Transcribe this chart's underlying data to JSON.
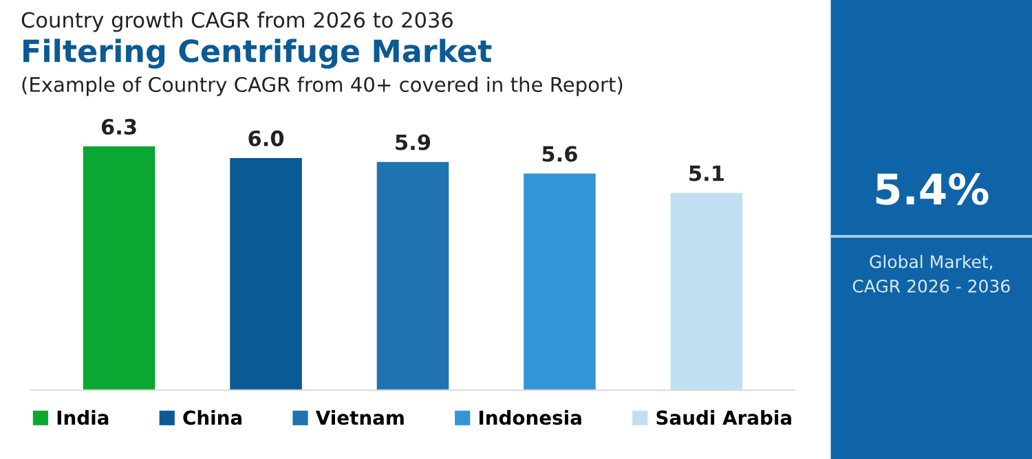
{
  "chart_data": [
    {
      "type": "bar",
      "title": "Filtering Centrifuge Market",
      "subtitle": "Country growth CAGR from 2026 to 2036",
      "annotations": [
        "(Example of Country CAGR from 40+ covered in the Report)"
      ],
      "categories": [
        null,
        null,
        null,
        null,
        null
      ],
      "series": [
        {
          "name": "India",
          "color": "#0aa832",
          "values": [
            6.3,
            null,
            null,
            null,
            null
          ],
          "value_labels": [
            "6.3",
            null,
            null,
            null,
            null
          ]
        },
        {
          "name": "China",
          "color": "#0b5a94",
          "values": [
            null,
            6.0,
            null,
            null,
            null
          ],
          "value_labels": [
            null,
            "6.0",
            null,
            null,
            null
          ]
        },
        {
          "name": "Vietnam",
          "color": "#1f73b0",
          "values": [
            null,
            null,
            5.9,
            null,
            null
          ],
          "value_labels": [
            null,
            null,
            "5.9",
            null,
            null
          ]
        },
        {
          "name": "Indonesia",
          "color": "#3495d6",
          "values": [
            null,
            null,
            null,
            5.6,
            null
          ],
          "value_labels": [
            null,
            null,
            null,
            "5.6",
            null
          ]
        },
        {
          "name": "Saudi Arabia",
          "color": "#c0dff2",
          "values": [
            null,
            null,
            null,
            null,
            5.1
          ],
          "value_labels": [
            null,
            null,
            null,
            null,
            "5.1"
          ]
        }
      ],
      "stacked": true,
      "legend": "bottom"
    },
    {
      "type": "other",
      "title": "5.4%",
      "annotations": [
        "Global Market,\nCAGR 2026 - 2036"
      ]
    }
  ]
}
